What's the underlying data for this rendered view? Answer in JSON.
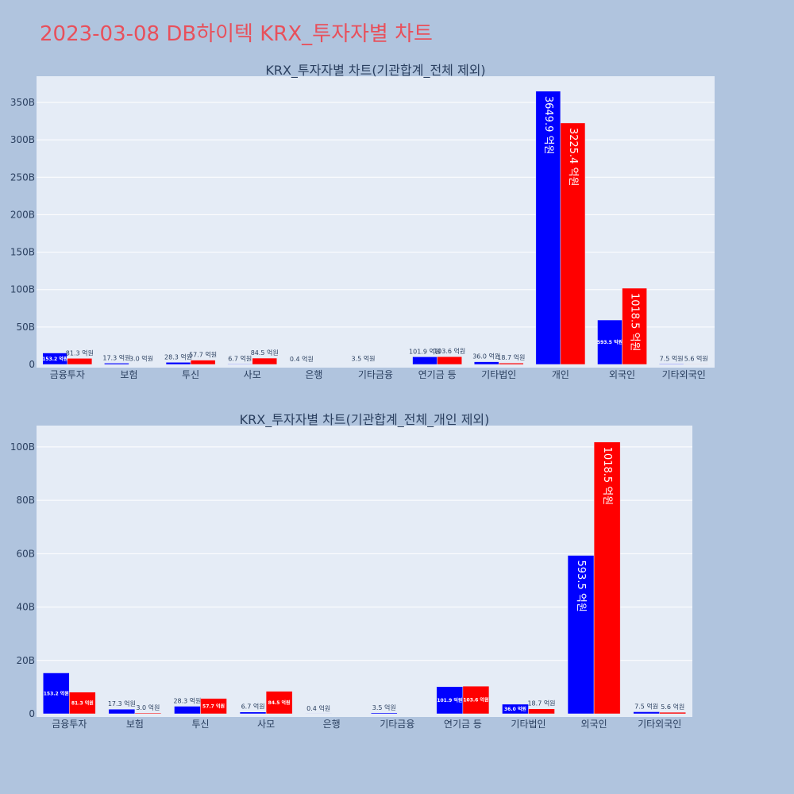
{
  "page": {
    "title": "2023-03-08 DB하이텍 KRX_투자자별 차트"
  },
  "chart_data": [
    {
      "type": "bar",
      "title": "KRX_투자자별 차트(기관합계_전체 제외)",
      "categories": [
        "금융투자",
        "보험",
        "투신",
        "사모",
        "은행",
        "기타금융",
        "연기금 등",
        "기타법인",
        "개인",
        "외국인",
        "기타외국인"
      ],
      "series": [
        {
          "color": "#0000ff",
          "values": [
            15.32,
            1.73,
            2.83,
            0.67,
            0.04,
            0.35,
            10.19,
            3.6,
            364.99,
            59.35,
            0.75
          ],
          "labels": [
            "153.2 억원",
            "17.3 억원",
            "28.3 억원",
            "6.7 억원",
            "0.4 억원",
            "3.5 억원",
            "101.9 억원",
            "36.0 억원",
            "3649.9 억원",
            "593.5 억원",
            "7.5 억원"
          ]
        },
        {
          "color": "#ff0000",
          "values": [
            8.13,
            0.3,
            5.77,
            8.45,
            0,
            0,
            10.36,
            1.87,
            322.54,
            101.85,
            0.56
          ],
          "labels": [
            "81.3 억원",
            "3.0 억원",
            "57.7 억원",
            "84.5 억원",
            "",
            "",
            "103.6 억원",
            "18.7 억원",
            "3225.4 억원",
            "1018.5 억원",
            "5.6 억원"
          ]
        }
      ],
      "ylim": [
        0,
        385
      ],
      "yticks": [
        0,
        50,
        100,
        150,
        200,
        250,
        300,
        350
      ],
      "ytick_labels": [
        "0",
        "50B",
        "100B",
        "150B",
        "200B",
        "250B",
        "300B",
        "350B"
      ]
    },
    {
      "type": "bar",
      "title": "KRX_투자자별 차트(기관합계_전체_개인 제외)",
      "categories": [
        "금융투자",
        "보험",
        "투신",
        "사모",
        "은행",
        "기타금융",
        "연기금 등",
        "기타법인",
        "외국인",
        "기타외국인"
      ],
      "series": [
        {
          "color": "#0000ff",
          "values": [
            15.32,
            1.73,
            2.83,
            0.67,
            0.04,
            0.35,
            10.19,
            3.6,
            59.35,
            0.75
          ],
          "labels": [
            "153.2 억원",
            "17.3 억원",
            "28.3 억원",
            "6.7 억원",
            "0.4 억원",
            "3.5 억원",
            "101.9 억원",
            "36.0 억원",
            "593.5 억원",
            "7.5 억원"
          ]
        },
        {
          "color": "#ff0000",
          "values": [
            8.13,
            0.3,
            5.77,
            8.45,
            0,
            0,
            10.36,
            1.87,
            101.85,
            0.56
          ],
          "labels": [
            "81.3 억원",
            "3.0 억원",
            "57.7 억원",
            "84.5 억원",
            "",
            "",
            "103.6 억원",
            "18.7 억원",
            "1018.5 억원",
            "5.6 억원"
          ]
        }
      ],
      "ylim": [
        0,
        108
      ],
      "yticks": [
        0,
        20,
        40,
        60,
        80,
        100
      ],
      "ytick_labels": [
        "0",
        "20B",
        "40B",
        "60B",
        "80B",
        "100B"
      ]
    }
  ]
}
